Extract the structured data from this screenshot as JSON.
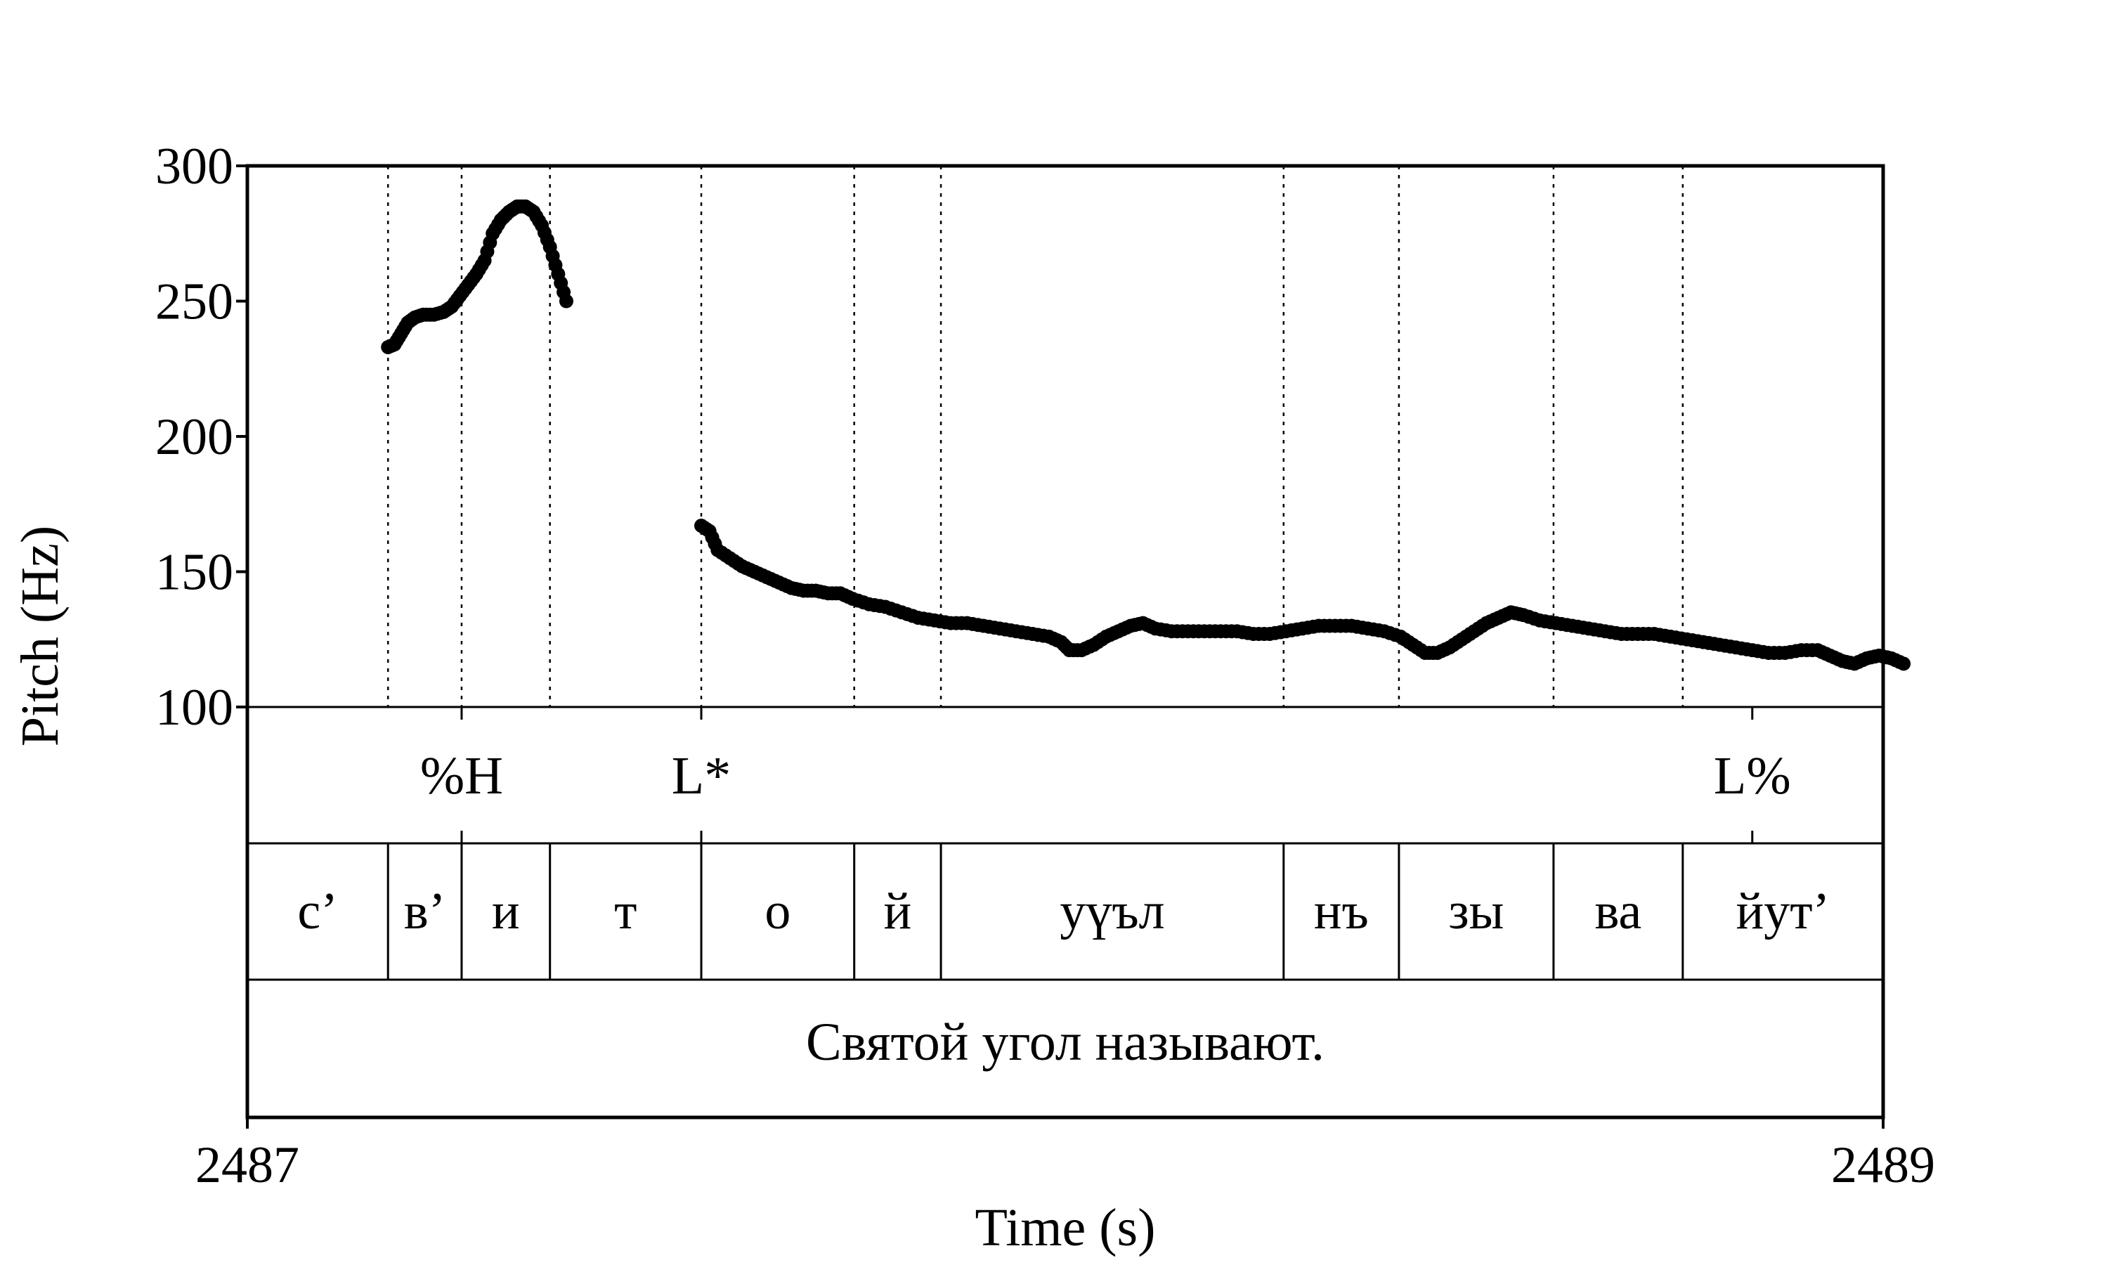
{
  "chart_data": {
    "type": "line",
    "xlabel": "Time (s)",
    "ylabel": "Pitch (Hz)",
    "xlim": [
      2487,
      2489
    ],
    "ylim": [
      100,
      300
    ],
    "x_ticks": [
      "2487",
      "2489"
    ],
    "y_ticks": [
      "100",
      "150",
      "200",
      "250",
      "300"
    ],
    "grid": false,
    "legend": "none",
    "point_color": "#000000",
    "series": [
      {
        "values": [
          [
            2487.172,
            233
          ],
          [
            2487.18,
            234
          ],
          [
            2487.188,
            238
          ],
          [
            2487.196,
            242
          ],
          [
            2487.205,
            244
          ],
          [
            2487.215,
            245
          ],
          [
            2487.228,
            245
          ],
          [
            2487.24,
            246
          ],
          [
            2487.25,
            248
          ],
          [
            2487.26,
            252
          ],
          [
            2487.27,
            256
          ],
          [
            2487.28,
            260
          ],
          [
            2487.29,
            265
          ],
          [
            2487.3,
            275
          ],
          [
            2487.31,
            280
          ],
          [
            2487.32,
            283
          ],
          [
            2487.33,
            285
          ],
          [
            2487.34,
            285
          ],
          [
            2487.35,
            283
          ],
          [
            2487.36,
            278
          ],
          [
            2487.37,
            270
          ],
          [
            2487.38,
            260
          ],
          [
            2487.39,
            250
          ]
        ]
      },
      {
        "values": [
          [
            2487.555,
            167
          ],
          [
            2487.565,
            165
          ],
          [
            2487.575,
            158
          ],
          [
            2487.59,
            155
          ],
          [
            2487.605,
            152
          ],
          [
            2487.62,
            150
          ],
          [
            2487.635,
            148
          ],
          [
            2487.65,
            146
          ],
          [
            2487.665,
            144
          ],
          [
            2487.68,
            143
          ],
          [
            2487.695,
            143
          ],
          [
            2487.71,
            142
          ],
          [
            2487.725,
            142
          ],
          [
            2487.74,
            140
          ],
          [
            2487.76,
            138
          ],
          [
            2487.78,
            137
          ],
          [
            2487.8,
            135
          ],
          [
            2487.82,
            133
          ],
          [
            2487.84,
            132
          ],
          [
            2487.86,
            131
          ],
          [
            2487.88,
            131
          ],
          [
            2487.9,
            130
          ],
          [
            2487.92,
            129
          ],
          [
            2487.94,
            128
          ],
          [
            2487.96,
            127
          ],
          [
            2487.98,
            126
          ],
          [
            2487.995,
            124
          ],
          [
            2488.005,
            121
          ],
          [
            2488.02,
            121
          ],
          [
            2488.035,
            123
          ],
          [
            2488.05,
            126
          ],
          [
            2488.065,
            128
          ],
          [
            2488.08,
            130
          ],
          [
            2488.095,
            131
          ],
          [
            2488.11,
            129
          ],
          [
            2488.13,
            128
          ],
          [
            2488.15,
            128
          ],
          [
            2488.17,
            128
          ],
          [
            2488.19,
            128
          ],
          [
            2488.21,
            128
          ],
          [
            2488.23,
            127
          ],
          [
            2488.25,
            127
          ],
          [
            2488.27,
            128
          ],
          [
            2488.29,
            129
          ],
          [
            2488.31,
            130
          ],
          [
            2488.33,
            130
          ],
          [
            2488.35,
            130
          ],
          [
            2488.37,
            129
          ],
          [
            2488.39,
            128
          ],
          [
            2488.41,
            126
          ],
          [
            2488.425,
            123
          ],
          [
            2488.44,
            120
          ],
          [
            2488.455,
            120
          ],
          [
            2488.47,
            122
          ],
          [
            2488.485,
            125
          ],
          [
            2488.5,
            128
          ],
          [
            2488.515,
            131
          ],
          [
            2488.53,
            133
          ],
          [
            2488.545,
            135
          ],
          [
            2488.56,
            134
          ],
          [
            2488.58,
            132
          ],
          [
            2488.6,
            131
          ],
          [
            2488.62,
            130
          ],
          [
            2488.64,
            129
          ],
          [
            2488.66,
            128
          ],
          [
            2488.68,
            127
          ],
          [
            2488.7,
            127
          ],
          [
            2488.72,
            127
          ],
          [
            2488.74,
            126
          ],
          [
            2488.76,
            125
          ],
          [
            2488.78,
            124
          ],
          [
            2488.8,
            123
          ],
          [
            2488.82,
            122
          ],
          [
            2488.84,
            121
          ],
          [
            2488.86,
            120
          ],
          [
            2488.88,
            120
          ],
          [
            2488.9,
            121
          ],
          [
            2488.92,
            121
          ],
          [
            2488.935,
            119
          ],
          [
            2488.95,
            117
          ],
          [
            2488.965,
            116
          ],
          [
            2488.98,
            118
          ],
          [
            2488.995,
            119
          ],
          [
            2489.01,
            118
          ],
          [
            2489.025,
            116
          ]
        ]
      }
    ],
    "tone_tier": [
      {
        "label": "%H",
        "time": 2487.262
      },
      {
        "label": "L*",
        "time": 2487.555
      },
      {
        "label": "L%",
        "time": 2488.84
      }
    ],
    "segment_tier": [
      {
        "label": "с’",
        "start": 2487.0,
        "end": 2487.172
      },
      {
        "label": "в’",
        "start": 2487.172,
        "end": 2487.262
      },
      {
        "label": "и",
        "start": 2487.262,
        "end": 2487.37
      },
      {
        "label": "т",
        "start": 2487.37,
        "end": 2487.555
      },
      {
        "label": "о",
        "start": 2487.555,
        "end": 2487.742
      },
      {
        "label": "й",
        "start": 2487.742,
        "end": 2487.848
      },
      {
        "label": "уүъл",
        "start": 2487.848,
        "end": 2488.267
      },
      {
        "label": "нъ",
        "start": 2488.267,
        "end": 2488.408
      },
      {
        "label": "зы",
        "start": 2488.408,
        "end": 2488.597
      },
      {
        "label": "ва",
        "start": 2488.597,
        "end": 2488.755
      },
      {
        "label": "йут’",
        "start": 2488.755,
        "end": 2489.0
      }
    ],
    "sentence": "Святой угол называют."
  }
}
